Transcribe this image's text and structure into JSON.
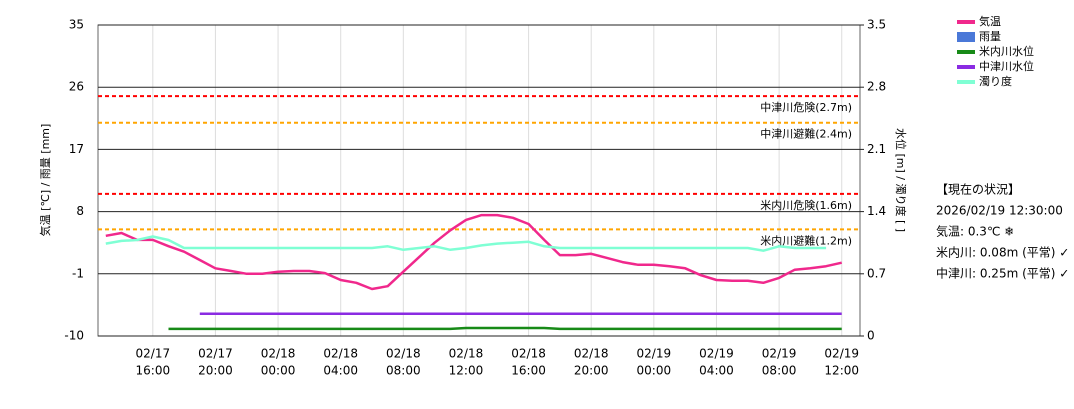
{
  "chart_data": {
    "type": "line",
    "ylabel": "気温 [℃] / 雨量 [mm]",
    "y2label": "水位 [m] / 濁り度 [ ]",
    "ylim": [
      -10,
      35
    ],
    "yticks": [
      -10,
      -1,
      8,
      17,
      26,
      35
    ],
    "y2lim": [
      0,
      3.5
    ],
    "y2ticks": [
      0,
      0.7,
      1.4,
      2.1,
      2.8,
      3.5
    ],
    "xlim": [
      "02/17 12:30",
      "02/19 13:10"
    ],
    "xticks": [
      {
        "value": "02/17 16:00",
        "label": [
          "02/17",
          "16:00"
        ]
      },
      {
        "value": "02/17 20:00",
        "label": [
          "02/17",
          "20:00"
        ]
      },
      {
        "value": "02/18 00:00",
        "label": [
          "02/18",
          "00:00"
        ]
      },
      {
        "value": "02/18 04:00",
        "label": [
          "02/18",
          "04:00"
        ]
      },
      {
        "value": "02/18 08:00",
        "label": [
          "02/18",
          "08:00"
        ]
      },
      {
        "value": "02/18 12:00",
        "label": [
          "02/18",
          "12:00"
        ]
      },
      {
        "value": "02/18 16:00",
        "label": [
          "02/18",
          "16:00"
        ]
      },
      {
        "value": "02/18 20:00",
        "label": [
          "02/18",
          "20:00"
        ]
      },
      {
        "value": "02/19 00:00",
        "label": [
          "02/19",
          "00:00"
        ]
      },
      {
        "value": "02/19 04:00",
        "label": [
          "02/19",
          "04:00"
        ]
      },
      {
        "value": "02/19 08:00",
        "label": [
          "02/19",
          "08:00"
        ]
      },
      {
        "value": "02/19 12:00",
        "label": [
          "02/19",
          "12:00"
        ]
      }
    ],
    "grid": true,
    "x": [
      "02/17 13:00",
      "02/17 14:00",
      "02/17 15:00",
      "02/17 16:00",
      "02/17 17:00",
      "02/17 18:00",
      "02/17 19:00",
      "02/17 20:00",
      "02/17 21:00",
      "02/17 22:00",
      "02/17 23:00",
      "02/18 00:00",
      "02/18 01:00",
      "02/18 02:00",
      "02/18 03:00",
      "02/18 04:00",
      "02/18 05:00",
      "02/18 06:00",
      "02/18 07:00",
      "02/18 08:00",
      "02/18 09:00",
      "02/18 10:00",
      "02/18 11:00",
      "02/18 12:00",
      "02/18 13:00",
      "02/18 14:00",
      "02/18 15:00",
      "02/18 16:00",
      "02/18 17:00",
      "02/18 18:00",
      "02/18 19:00",
      "02/18 20:00",
      "02/18 21:00",
      "02/18 22:00",
      "02/18 23:00",
      "02/19 00:00",
      "02/19 01:00",
      "02/19 02:00",
      "02/19 03:00",
      "02/19 04:00",
      "02/19 05:00",
      "02/19 06:00",
      "02/19 07:00",
      "02/19 08:00",
      "02/19 09:00",
      "02/19 10:00",
      "02/19 11:00",
      "02/19 12:00"
    ],
    "series": [
      {
        "name": "気温",
        "color": "#f0288c",
        "axis": "y",
        "values": [
          4.5,
          4.9,
          3.9,
          3.9,
          3.0,
          2.2,
          1.0,
          -0.2,
          -0.6,
          -1.0,
          -1.0,
          -0.7,
          -0.6,
          -0.6,
          -0.9,
          -1.9,
          -2.3,
          -3.2,
          -2.8,
          -0.7,
          1.4,
          3.5,
          5.3,
          6.8,
          7.5,
          7.5,
          7.1,
          6.2,
          3.9,
          1.7,
          1.7,
          1.9,
          1.3,
          0.7,
          0.3,
          0.3,
          0.1,
          -0.2,
          -1.2,
          -1.9,
          -2.0,
          -2.0,
          -2.3,
          -1.6,
          -0.4,
          -0.2,
          0.1,
          0.6
        ]
      },
      {
        "name": "雨量",
        "color": "#4a78d8",
        "axis": "y",
        "kind": "bar",
        "values": [
          null,
          null,
          null,
          null,
          null,
          null,
          null,
          null,
          null,
          null,
          null,
          null,
          null,
          null,
          null,
          null,
          null,
          null,
          null,
          null,
          null,
          null,
          null,
          null,
          null,
          null,
          null,
          null,
          null,
          null,
          null,
          null,
          null,
          null,
          null,
          null,
          null,
          null,
          null,
          null,
          null,
          null,
          null,
          null,
          null,
          null,
          null,
          null
        ]
      },
      {
        "name": "米内川水位",
        "color": "#178a17",
        "axis": "y2",
        "values": [
          null,
          null,
          null,
          null,
          0.08,
          0.08,
          0.08,
          0.08,
          0.08,
          0.08,
          0.08,
          0.08,
          0.08,
          0.08,
          0.08,
          0.08,
          0.08,
          0.08,
          0.08,
          0.08,
          0.08,
          0.08,
          0.08,
          0.09,
          0.09,
          0.09,
          0.09,
          0.09,
          0.09,
          0.08,
          0.08,
          0.08,
          0.08,
          0.08,
          0.08,
          0.08,
          0.08,
          0.08,
          0.08,
          0.08,
          0.08,
          0.08,
          0.08,
          0.08,
          0.08,
          0.08,
          0.08,
          0.08
        ]
      },
      {
        "name": "中津川水位",
        "color": "#8a2be2",
        "axis": "y2",
        "values": [
          null,
          null,
          null,
          null,
          null,
          null,
          0.25,
          0.25,
          0.25,
          0.25,
          0.25,
          0.25,
          0.25,
          0.25,
          0.25,
          0.25,
          0.25,
          0.25,
          0.25,
          0.25,
          0.25,
          0.25,
          0.25,
          0.25,
          0.25,
          0.25,
          0.25,
          0.25,
          0.25,
          0.25,
          0.25,
          0.25,
          0.25,
          0.25,
          0.25,
          0.25,
          0.25,
          0.25,
          0.25,
          0.25,
          0.25,
          0.25,
          0.25,
          0.25,
          0.25,
          0.25,
          0.25,
          0.25
        ]
      },
      {
        "name": "濁り度",
        "color": "#7fffd4",
        "axis": "y2",
        "values": [
          1.04,
          1.07,
          1.08,
          1.12,
          1.08,
          0.99,
          0.99,
          0.99,
          0.99,
          0.99,
          0.99,
          0.99,
          0.99,
          0.99,
          0.99,
          0.99,
          0.99,
          0.99,
          1.01,
          0.97,
          0.99,
          1.01,
          0.97,
          0.99,
          1.02,
          1.04,
          1.05,
          1.06,
          1.01,
          0.99,
          0.99,
          0.99,
          0.99,
          0.99,
          0.99,
          0.99,
          0.99,
          0.99,
          0.99,
          0.99,
          0.99,
          0.99,
          0.96,
          1.01,
          0.99,
          0.99,
          0.99,
          null
        ]
      }
    ],
    "thresholds": [
      {
        "value": 2.7,
        "label": "中津川危険(2.7m)",
        "color": "#ff0000"
      },
      {
        "value": 2.4,
        "label": "中津川避難(2.4m)",
        "color": "#ffa500"
      },
      {
        "value": 1.6,
        "label": "米内川危険(1.6m)",
        "color": "#ff0000"
      },
      {
        "value": 1.2,
        "label": "米内川避難(1.2m)",
        "color": "#ffa500"
      }
    ],
    "status": [
      "【現在の状況】",
      "2026/02/19 12:30:00",
      "気温: 0.3℃ ❄",
      "米内川: 0.08m (平常) ✓",
      "中津川: 0.25m (平常) ✓"
    ]
  }
}
